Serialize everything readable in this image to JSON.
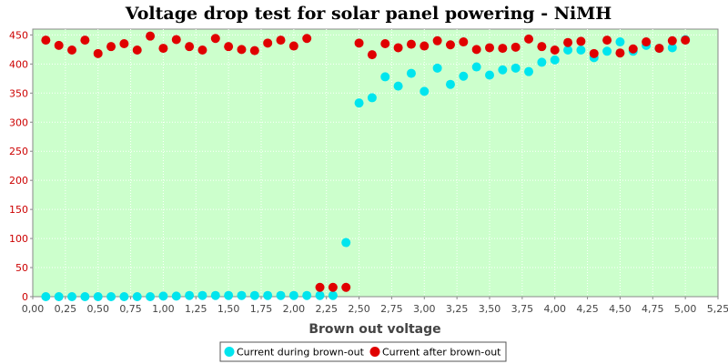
{
  "chart_data": {
    "type": "scatter",
    "title": "Voltage drop test for solar panel powering -  NiMH",
    "xlabel": "Brown out voltage",
    "ylabel": "",
    "xlim": [
      0,
      5.25
    ],
    "ylim": [
      0,
      460
    ],
    "x_ticks": [
      0,
      0.25,
      0.5,
      0.75,
      1.0,
      1.25,
      1.5,
      1.75,
      2.0,
      2.25,
      2.5,
      2.75,
      3.0,
      3.25,
      3.5,
      3.75,
      4.0,
      4.25,
      4.5,
      4.75,
      5.0,
      5.25
    ],
    "x_tick_labels": [
      "0,00",
      "0,25",
      "0,50",
      "0,75",
      "1,00",
      "1,25",
      "1,50",
      "1,75",
      "2,00",
      "2,25",
      "2,50",
      "2,75",
      "3,00",
      "3,25",
      "3,50",
      "3,75",
      "4,00",
      "4,25",
      "4,50",
      "4,75",
      "5,00",
      "5,25"
    ],
    "y_ticks": [
      0,
      50,
      100,
      150,
      200,
      250,
      300,
      350,
      400,
      450
    ],
    "y_tick_labels": [
      "0",
      "50",
      "100",
      "150",
      "200",
      "250",
      "300",
      "350",
      "400",
      "450"
    ],
    "grid": true,
    "legend_position": "bottom-center",
    "colors": {
      "plot_background": "#ccffcc",
      "series_during": "#00e5ee",
      "series_after": "#e00000",
      "y_tick_text": "#cc0000",
      "x_tick_text": "#444444",
      "axis_line": "#888888"
    },
    "series": [
      {
        "name": "Current during brown-out",
        "color": "#00e5ee",
        "points": [
          [
            0.1,
            0
          ],
          [
            0.2,
            0
          ],
          [
            0.3,
            0
          ],
          [
            0.4,
            0
          ],
          [
            0.5,
            0
          ],
          [
            0.6,
            0
          ],
          [
            0.7,
            0
          ],
          [
            0.8,
            0
          ],
          [
            0.9,
            0
          ],
          [
            1.0,
            1
          ],
          [
            1.1,
            1
          ],
          [
            1.2,
            2
          ],
          [
            1.3,
            2
          ],
          [
            1.4,
            2
          ],
          [
            1.5,
            2
          ],
          [
            1.6,
            2
          ],
          [
            1.7,
            2
          ],
          [
            1.8,
            2
          ],
          [
            1.9,
            2
          ],
          [
            2.0,
            2
          ],
          [
            2.1,
            2
          ],
          [
            2.2,
            2
          ],
          [
            2.3,
            2
          ],
          [
            2.4,
            93
          ],
          [
            2.5,
            333
          ],
          [
            2.6,
            342
          ],
          [
            2.7,
            378
          ],
          [
            2.8,
            362
          ],
          [
            2.9,
            384
          ],
          [
            3.0,
            353
          ],
          [
            3.1,
            393
          ],
          [
            3.2,
            365
          ],
          [
            3.3,
            379
          ],
          [
            3.4,
            395
          ],
          [
            3.5,
            381
          ],
          [
            3.6,
            390
          ],
          [
            3.7,
            393
          ],
          [
            3.8,
            387
          ],
          [
            3.9,
            403
          ],
          [
            4.0,
            407
          ],
          [
            4.1,
            424
          ],
          [
            4.2,
            424
          ],
          [
            4.3,
            411
          ],
          [
            4.4,
            422
          ],
          [
            4.5,
            438
          ],
          [
            4.6,
            422
          ],
          [
            4.7,
            432
          ],
          [
            4.8,
            427
          ],
          [
            4.9,
            428
          ],
          [
            5.0,
            442
          ]
        ]
      },
      {
        "name": "Current after brown-out",
        "color": "#e00000",
        "points": [
          [
            0.1,
            441
          ],
          [
            0.2,
            432
          ],
          [
            0.3,
            424
          ],
          [
            0.4,
            441
          ],
          [
            0.5,
            418
          ],
          [
            0.6,
            430
          ],
          [
            0.7,
            435
          ],
          [
            0.8,
            424
          ],
          [
            0.9,
            448
          ],
          [
            1.0,
            427
          ],
          [
            1.1,
            442
          ],
          [
            1.2,
            430
          ],
          [
            1.3,
            424
          ],
          [
            1.4,
            444
          ],
          [
            1.5,
            430
          ],
          [
            1.6,
            425
          ],
          [
            1.7,
            423
          ],
          [
            1.8,
            436
          ],
          [
            1.9,
            441
          ],
          [
            2.0,
            431
          ],
          [
            2.1,
            444
          ],
          [
            2.2,
            16
          ],
          [
            2.3,
            16
          ],
          [
            2.4,
            16
          ],
          [
            2.5,
            436
          ],
          [
            2.6,
            416
          ],
          [
            2.7,
            435
          ],
          [
            2.8,
            428
          ],
          [
            2.9,
            434
          ],
          [
            3.0,
            431
          ],
          [
            3.1,
            440
          ],
          [
            3.2,
            433
          ],
          [
            3.3,
            438
          ],
          [
            3.4,
            425
          ],
          [
            3.5,
            428
          ],
          [
            3.6,
            427
          ],
          [
            3.7,
            429
          ],
          [
            3.8,
            443
          ],
          [
            3.9,
            430
          ],
          [
            4.0,
            424
          ],
          [
            4.1,
            437
          ],
          [
            4.2,
            439
          ],
          [
            4.3,
            418
          ],
          [
            4.4,
            441
          ],
          [
            4.5,
            419
          ],
          [
            4.6,
            426
          ],
          [
            4.7,
            438
          ],
          [
            4.8,
            427
          ],
          [
            4.9,
            440
          ],
          [
            5.0,
            441
          ]
        ]
      }
    ]
  }
}
